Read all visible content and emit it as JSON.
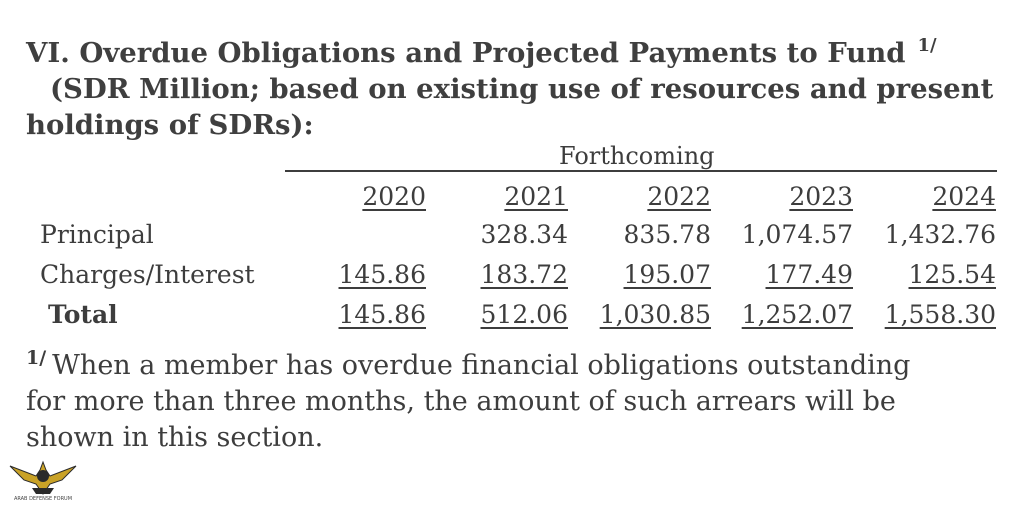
{
  "title": {
    "line1": "VI. Overdue Obligations and Projected Payments to Fund",
    "footnote_mark": "1/",
    "line2": "(SDR Million; based on existing use of resources and present",
    "line3": "holdings of SDRs):"
  },
  "table": {
    "group_header": "Forthcoming",
    "years": [
      "2020",
      "2021",
      "2022",
      "2023",
      "2024"
    ],
    "rows": [
      {
        "label": "Principal",
        "values": [
          "",
          "328.34",
          "835.78",
          "1,074.57",
          "1,432.76"
        ]
      },
      {
        "label": "Charges/Interest",
        "values": [
          "145.86",
          "183.72",
          "195.07",
          "177.49",
          "125.54"
        ]
      },
      {
        "label": "Total",
        "values": [
          "145.86",
          "512.06",
          "1,030.85",
          "1,252.07",
          "1,558.30"
        ]
      }
    ]
  },
  "footnote": {
    "mark": "1/",
    "line1": "When a member has overdue financial obligations outstanding",
    "line2": "for more than three months, the amount of such arrears will be",
    "line3": "shown in this section."
  },
  "watermark": {
    "icon": "eagle-emblem-icon",
    "text": "ARAB DEFENSE FORUM",
    "colors": {
      "gold": "#c9a227",
      "dark": "#2a2a2a"
    }
  }
}
